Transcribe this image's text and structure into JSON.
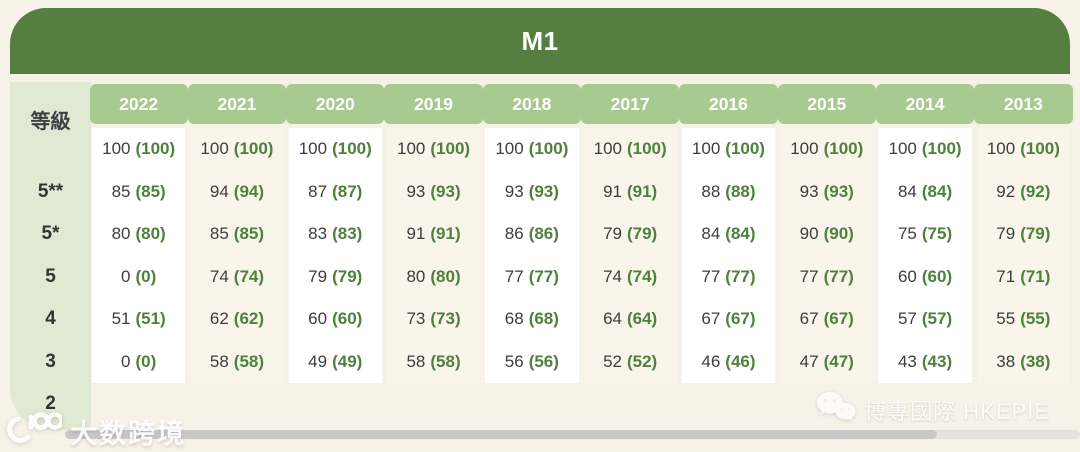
{
  "title": "M1",
  "table": {
    "grade_header": "等級",
    "years": [
      "2022",
      "2021",
      "2020",
      "2019",
      "2018",
      "2017",
      "2016",
      "2015",
      "2014",
      "2013"
    ],
    "rows": [
      {
        "grade": "",
        "cells": [
          [
            "100",
            "(100)"
          ],
          [
            "100",
            "(100)"
          ],
          [
            "100",
            "(100)"
          ],
          [
            "100",
            "(100)"
          ],
          [
            "100",
            "(100)"
          ],
          [
            "100",
            "(100)"
          ],
          [
            "100",
            "(100)"
          ],
          [
            "100",
            "(100)"
          ],
          [
            "100",
            "(100)"
          ],
          [
            "100",
            "(100)"
          ]
        ]
      },
      {
        "grade": "5**",
        "cells": [
          [
            "85",
            "(85)"
          ],
          [
            "94",
            "(94)"
          ],
          [
            "87",
            "(87)"
          ],
          [
            "93",
            "(93)"
          ],
          [
            "93",
            "(93)"
          ],
          [
            "91",
            "(91)"
          ],
          [
            "88",
            "(88)"
          ],
          [
            "93",
            "(93)"
          ],
          [
            "84",
            "(84)"
          ],
          [
            "92",
            "(92)"
          ]
        ]
      },
      {
        "grade": "5*",
        "cells": [
          [
            "80",
            "(80)"
          ],
          [
            "85",
            "(85)"
          ],
          [
            "83",
            "(83)"
          ],
          [
            "91",
            "(91)"
          ],
          [
            "86",
            "(86)"
          ],
          [
            "79",
            "(79)"
          ],
          [
            "84",
            "(84)"
          ],
          [
            "90",
            "(90)"
          ],
          [
            "75",
            "(75)"
          ],
          [
            "79",
            "(79)"
          ]
        ]
      },
      {
        "grade": "5",
        "cells": [
          [
            "0",
            "(0)"
          ],
          [
            "74",
            "(74)"
          ],
          [
            "79",
            "(79)"
          ],
          [
            "80",
            "(80)"
          ],
          [
            "77",
            "(77)"
          ],
          [
            "74",
            "(74)"
          ],
          [
            "77",
            "(77)"
          ],
          [
            "77",
            "(77)"
          ],
          [
            "60",
            "(60)"
          ],
          [
            "71",
            "(71)"
          ]
        ]
      },
      {
        "grade": "4",
        "cells": [
          [
            "51",
            "(51)"
          ],
          [
            "62",
            "(62)"
          ],
          [
            "60",
            "(60)"
          ],
          [
            "73",
            "(73)"
          ],
          [
            "68",
            "(68)"
          ],
          [
            "64",
            "(64)"
          ],
          [
            "67",
            "(67)"
          ],
          [
            "67",
            "(67)"
          ],
          [
            "57",
            "(57)"
          ],
          [
            "55",
            "(55)"
          ]
        ]
      },
      {
        "grade": "3",
        "cells": [
          [
            "0",
            "(0)"
          ],
          [
            "58",
            "(58)"
          ],
          [
            "49",
            "(49)"
          ],
          [
            "58",
            "(58)"
          ],
          [
            "56",
            "(56)"
          ],
          [
            "52",
            "(52)"
          ],
          [
            "46",
            "(46)"
          ],
          [
            "47",
            "(47)"
          ],
          [
            "43",
            "(43)"
          ],
          [
            "38",
            "(38)"
          ]
        ]
      },
      {
        "grade": "2",
        "cells": []
      }
    ]
  },
  "watermarks": {
    "left": {
      "text": "大数跨境",
      "icon": "dashukuajing-logo-icon"
    },
    "right": {
      "text": "博專國際 HKEPIE",
      "icon": "wechat-icon"
    }
  },
  "colors": {
    "title_band_green": "#567e41",
    "year_header_green": "#a7ca90",
    "grade_column_green": "#dfe9d3",
    "score_paren_green": "#4e813c",
    "column_white": "#ffffff",
    "column_cream": "#faf5ea",
    "page_background": "#f6f2e8"
  },
  "chart_data": {
    "type": "table",
    "title": "M1",
    "row_header": "等級",
    "columns": [
      "2022",
      "2021",
      "2020",
      "2019",
      "2018",
      "2017",
      "2016",
      "2015",
      "2014",
      "2013"
    ],
    "rows": [
      {
        "grade": "",
        "values": [
          100,
          100,
          100,
          100,
          100,
          100,
          100,
          100,
          100,
          100
        ],
        "values_in_parentheses": [
          100,
          100,
          100,
          100,
          100,
          100,
          100,
          100,
          100,
          100
        ]
      },
      {
        "grade": "5**",
        "values": [
          85,
          94,
          87,
          93,
          93,
          91,
          88,
          93,
          84,
          92
        ],
        "values_in_parentheses": [
          85,
          94,
          87,
          93,
          93,
          91,
          88,
          93,
          84,
          92
        ]
      },
      {
        "grade": "5*",
        "values": [
          80,
          85,
          83,
          91,
          86,
          79,
          84,
          90,
          75,
          79
        ],
        "values_in_parentheses": [
          80,
          85,
          83,
          91,
          86,
          79,
          84,
          90,
          75,
          79
        ]
      },
      {
        "grade": "5",
        "values": [
          0,
          74,
          79,
          80,
          77,
          74,
          77,
          77,
          60,
          71
        ],
        "values_in_parentheses": [
          0,
          74,
          79,
          80,
          77,
          74,
          77,
          77,
          60,
          71
        ]
      },
      {
        "grade": "4",
        "values": [
          51,
          62,
          60,
          73,
          68,
          64,
          67,
          67,
          57,
          55
        ],
        "values_in_parentheses": [
          51,
          62,
          60,
          73,
          68,
          64,
          67,
          67,
          57,
          55
        ]
      },
      {
        "grade": "3",
        "values": [
          0,
          58,
          49,
          58,
          56,
          52,
          46,
          47,
          43,
          38
        ],
        "values_in_parentheses": [
          0,
          58,
          49,
          58,
          56,
          52,
          46,
          47,
          43,
          38
        ]
      },
      {
        "grade": "2",
        "values": [],
        "values_in_parentheses": []
      }
    ]
  }
}
